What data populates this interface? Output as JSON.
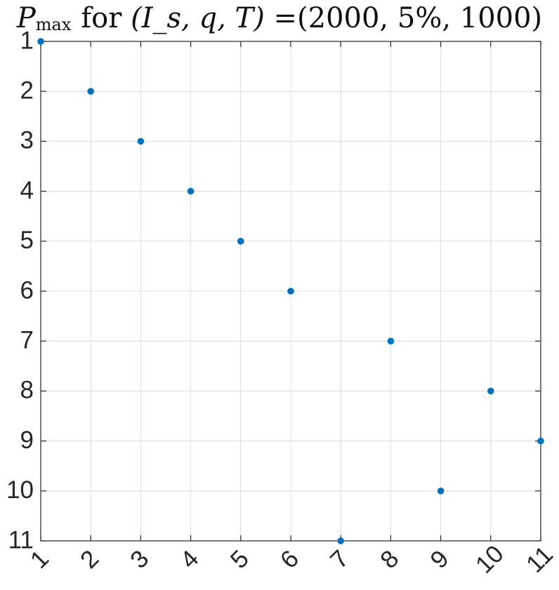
{
  "title": {
    "p_symbol": "P",
    "p_subscript": "max",
    "for_word": "for",
    "vars": "(I_s, q, T)",
    "equals_values": "=(2000, 5%, 1000)"
  },
  "chart_data": {
    "type": "scatter",
    "x": [
      1,
      2,
      3,
      4,
      5,
      6,
      7,
      8,
      9,
      10,
      11
    ],
    "y": [
      1,
      2,
      3,
      4,
      5,
      6,
      11,
      7,
      10,
      8,
      9
    ],
    "xlim": [
      1,
      11
    ],
    "ylim": [
      1,
      11
    ],
    "y_reversed": true,
    "grid": true,
    "xticks": [
      "1",
      "2",
      "3",
      "4",
      "5",
      "6",
      "7",
      "8",
      "9",
      "10",
      "11"
    ],
    "yticks": [
      "1",
      "2",
      "3",
      "4",
      "5",
      "6",
      "7",
      "8",
      "9",
      "10",
      "11"
    ],
    "marker_color": "#0072BD"
  }
}
